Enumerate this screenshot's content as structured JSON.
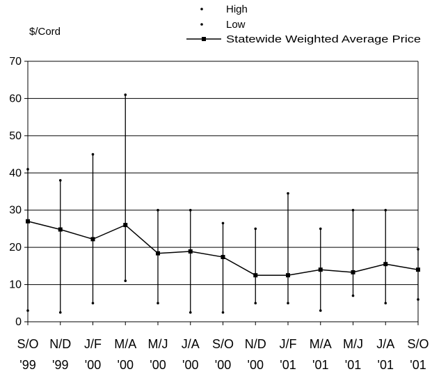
{
  "chart_data": {
    "type": "line",
    "title": "",
    "ylabel": "$/Cord",
    "xlabel": "",
    "ylim": [
      0,
      70
    ],
    "yticks": [
      0,
      10,
      20,
      30,
      40,
      50,
      60,
      70
    ],
    "grid": "horizontal",
    "legend_position": "top-right",
    "categories": [
      [
        "S/O",
        "'99"
      ],
      [
        "N/D",
        "'99"
      ],
      [
        "J/F",
        "'00"
      ],
      [
        "M/A",
        "'00"
      ],
      [
        "M/J",
        "'00"
      ],
      [
        "J/A",
        "'00"
      ],
      [
        "S/O",
        "'00"
      ],
      [
        "N/D",
        "'00"
      ],
      [
        "J/F",
        "'01"
      ],
      [
        "M/A",
        "'01"
      ],
      [
        "M/J",
        "'01"
      ],
      [
        "J/A",
        "'01"
      ],
      [
        "S/O",
        "'01"
      ]
    ],
    "series": [
      {
        "name": "High",
        "marker": "dot",
        "values": [
          41,
          38,
          45,
          61,
          30,
          30,
          26.5,
          25,
          34.5,
          25,
          30,
          30,
          19.5
        ]
      },
      {
        "name": "Low",
        "marker": "dot",
        "values": [
          3,
          2.5,
          5,
          11,
          5,
          2.5,
          2.5,
          5,
          5,
          3,
          7,
          5,
          6
        ]
      },
      {
        "name": "Statewide Weighted Average Price",
        "marker": "square",
        "line": true,
        "values": [
          27,
          24.8,
          22.2,
          26,
          18.4,
          18.9,
          17.4,
          12.5,
          12.5,
          14,
          13.3,
          15.5,
          14
        ]
      }
    ],
    "colors": {
      "line": "#000000",
      "grid": "#000000",
      "background": "#ffffff"
    }
  }
}
